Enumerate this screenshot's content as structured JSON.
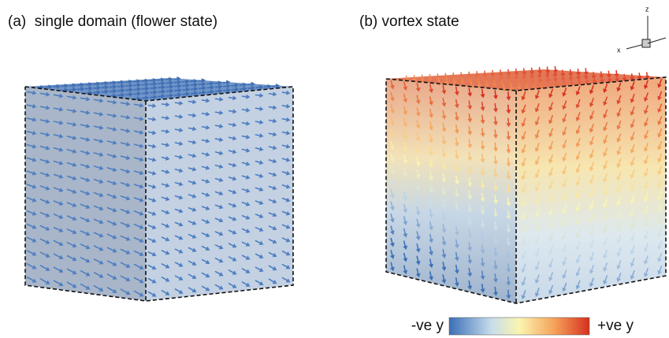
{
  "panels": [
    {
      "label": "(a)  single domain (flower state)"
    },
    {
      "label": "(b) vortex state"
    }
  ],
  "colorbar": {
    "min_label": "-ve y",
    "max_label": "+ve y"
  },
  "axes": {
    "z": "z",
    "x": "x"
  }
}
